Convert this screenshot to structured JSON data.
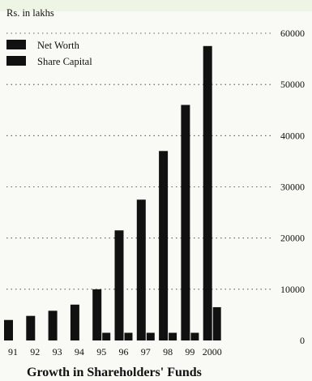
{
  "chart_data": {
    "type": "bar",
    "title": "Growth in Shareholders' Funds",
    "unit_label": "Rs. in lakhs",
    "categories": [
      "91",
      "92",
      "93",
      "94",
      "95",
      "96",
      "97",
      "98",
      "99",
      "2000"
    ],
    "series": [
      {
        "name": "Net Worth",
        "values": [
          4000,
          4800,
          5800,
          7000,
          10000,
          21500,
          27500,
          37000,
          46000,
          57500
        ]
      },
      {
        "name": "Share Capital",
        "values": [
          0,
          0,
          0,
          0,
          1500,
          1500,
          1500,
          1500,
          1500,
          6500
        ]
      }
    ],
    "y_ticks": [
      0,
      10000,
      20000,
      30000,
      40000,
      50000,
      60000
    ],
    "ylim": [
      0,
      60000
    ],
    "grid": true,
    "legend_position": "top-left",
    "colors": {
      "bar": "#111111",
      "background": "#f9f9f5"
    }
  }
}
